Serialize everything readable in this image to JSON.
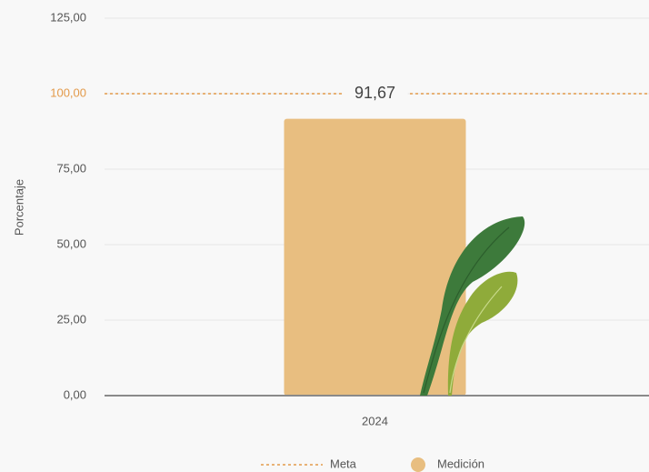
{
  "chart_data": {
    "type": "bar",
    "ylabel": "Porcentaje",
    "categories": [
      "2024"
    ],
    "series": [
      {
        "name": "Medición",
        "color": "#e8be80",
        "values": [
          91.67
        ],
        "value_labels": [
          "91,67"
        ]
      }
    ],
    "reference_line": {
      "name": "Meta",
      "value": 100,
      "color": "#e39a4a"
    },
    "ylim": [
      0,
      125
    ],
    "yticks": [
      {
        "value": 0,
        "label": "0,00"
      },
      {
        "value": 25,
        "label": "25,00"
      },
      {
        "value": 50,
        "label": "50,00"
      },
      {
        "value": 75,
        "label": "75,00"
      },
      {
        "value": 100,
        "label": "100,00"
      },
      {
        "value": 125,
        "label": "125,00"
      }
    ],
    "grid": true
  }
}
